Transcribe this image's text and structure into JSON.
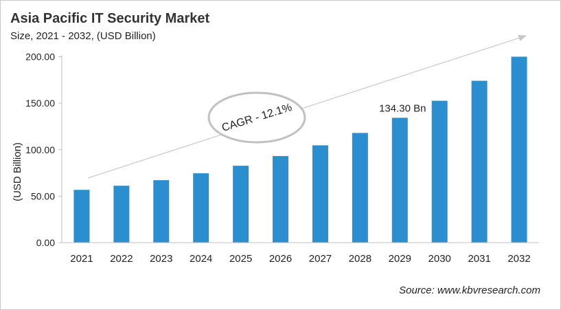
{
  "title": "Asia Pacific IT Security Market",
  "subtitle": "Size, 2021 - 2032, (USD Billion)",
  "source": "Source: www.kbvresearch.com",
  "chart_data": {
    "type": "bar",
    "title": "Asia Pacific IT Security Market",
    "subtitle": "Size, 2021 - 2032, (USD Billion)",
    "xlabel": "",
    "ylabel": "(USD Billion)",
    "ylim": [
      0,
      200
    ],
    "yticks": [
      "0.00",
      "50.00",
      "100.00",
      "150.00",
      "200.00"
    ],
    "grid": false,
    "categories": [
      "2021",
      "2022",
      "2023",
      "2024",
      "2025",
      "2026",
      "2027",
      "2028",
      "2029",
      "2030",
      "2031",
      "2032"
    ],
    "values": [
      56.8,
      61.2,
      67.2,
      74.6,
      82.7,
      93.1,
      104.7,
      118.0,
      134.3,
      152.6,
      174.1,
      200.0
    ],
    "bar_color": "#2b8fcf",
    "annotations": [
      {
        "category": "2029",
        "text": "134.30 Bn"
      },
      {
        "text": "CAGR - 12.1%"
      }
    ]
  }
}
